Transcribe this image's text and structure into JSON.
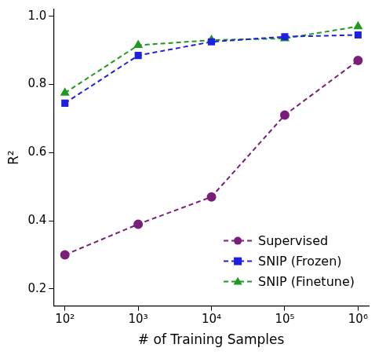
{
  "chart_data": {
    "type": "line",
    "x_label": "# of Training Samples",
    "y_label": "R²",
    "x": [
      100,
      1000,
      10000,
      100000,
      1000000
    ],
    "series": [
      {
        "name": "Supervised",
        "color": "#7b1e7a",
        "marker": "circle",
        "line_style": "dashed",
        "values": [
          0.3,
          0.39,
          0.47,
          0.71,
          0.87
        ]
      },
      {
        "name": "SNIP (Frozen)",
        "color": "#1f1fe0",
        "marker": "square",
        "line_style": "dashed",
        "values": [
          0.745,
          0.885,
          0.925,
          0.94,
          0.945
        ]
      },
      {
        "name": "SNIP (Finetune)",
        "color": "#1f9a1f",
        "marker": "triangle",
        "line_style": "dashed",
        "values": [
          0.775,
          0.915,
          0.93,
          0.935,
          0.97
        ]
      }
    ],
    "log": "x",
    "xlim": [
      70,
      1400000
    ],
    "xticks": [
      {
        "value": 100,
        "label": "10²"
      },
      {
        "value": 1000,
        "label": "10³"
      },
      {
        "value": 10000,
        "label": "10⁴"
      },
      {
        "value": 100000,
        "label": "10⁵"
      },
      {
        "value": 1000000,
        "label": "10⁶"
      }
    ],
    "ylim": [
      0.15,
      1.02
    ],
    "yticks": [
      0.2,
      0.4,
      0.6,
      0.8,
      {
        "value": 1,
        "label": "1.0"
      }
    ],
    "grid": false,
    "legend": "bottom-right"
  }
}
